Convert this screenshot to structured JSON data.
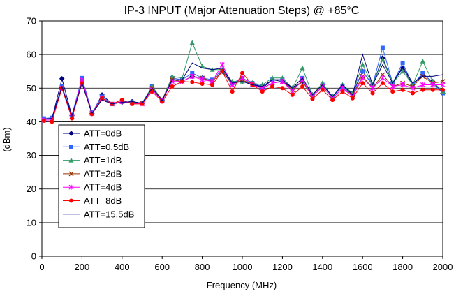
{
  "chart_data": {
    "type": "line",
    "title": "IP-3 INPUT (Major Attenuation Steps) @ +85°C",
    "xlabel": "Frequency (MHz)",
    "ylabel": "(dBm)",
    "xlim": [
      0,
      2000
    ],
    "ylim": [
      0,
      70
    ],
    "xticks": [
      "0",
      "200",
      "400",
      "600",
      "800",
      "1000",
      "1200",
      "1400",
      "1600",
      "1800",
      "2000"
    ],
    "yticks": [
      "0",
      "10",
      "20",
      "30",
      "40",
      "50",
      "60",
      "70"
    ],
    "grid": "horizontal",
    "legend_position": "left",
    "x": [
      10,
      50,
      100,
      150,
      200,
      250,
      300,
      350,
      400,
      450,
      500,
      550,
      600,
      650,
      700,
      750,
      800,
      850,
      900,
      950,
      1000,
      1050,
      1100,
      1150,
      1200,
      1250,
      1300,
      1350,
      1400,
      1450,
      1500,
      1550,
      1600,
      1650,
      1700,
      1750,
      1800,
      1850,
      1900,
      1950,
      2000
    ],
    "series": [
      {
        "name": "ATT=0dB",
        "color": "#000080",
        "marker": "diamond",
        "values": [
          40.8,
          40.8,
          52.8,
          41.8,
          52.5,
          42.5,
          48.0,
          45.3,
          45.8,
          46.0,
          45.5,
          50.0,
          46.5,
          52.5,
          52.0,
          53.5,
          53.0,
          52.0,
          55.0,
          51.5,
          52.0,
          51.5,
          50.0,
          52.5,
          52.0,
          50.0,
          52.0,
          48.0,
          51.0,
          47.5,
          50.5,
          48.5,
          55.0,
          51.0,
          59.0,
          51.5,
          56.0,
          51.0,
          54.0,
          52.0,
          48.5
        ]
      },
      {
        "name": "ATT=0.5dB",
        "color": "#3366ff",
        "marker": "square",
        "values": [
          41.0,
          41.2,
          50.5,
          42.0,
          53.0,
          42.8,
          47.5,
          45.3,
          46.0,
          45.8,
          45.5,
          50.5,
          46.5,
          53.0,
          52.5,
          54.5,
          53.0,
          52.5,
          55.5,
          51.5,
          53.0,
          51.5,
          50.5,
          52.5,
          52.5,
          50.0,
          53.0,
          48.0,
          51.0,
          47.5,
          50.5,
          48.0,
          55.0,
          51.0,
          62.0,
          51.5,
          57.5,
          51.0,
          54.5,
          51.5,
          48.5
        ]
      },
      {
        "name": "ATT=1dB",
        "color": "#339966",
        "marker": "triangle",
        "values": [
          40.5,
          40.5,
          50.0,
          41.5,
          52.0,
          42.5,
          47.0,
          45.3,
          46.0,
          45.8,
          45.5,
          50.5,
          46.5,
          53.5,
          53.0,
          63.5,
          56.5,
          55.5,
          55.5,
          52.0,
          52.0,
          51.5,
          51.0,
          53.0,
          53.0,
          50.0,
          56.0,
          48.0,
          51.5,
          47.5,
          51.0,
          48.5,
          57.0,
          51.0,
          58.5,
          51.5,
          55.0,
          51.0,
          58.0,
          52.0,
          49.0
        ]
      },
      {
        "name": "ATT=2dB",
        "color": "#993300",
        "marker": "x",
        "values": [
          40.5,
          40.5,
          50.0,
          41.5,
          52.0,
          42.5,
          47.0,
          45.3,
          46.0,
          45.5,
          45.5,
          50.0,
          46.5,
          52.5,
          52.0,
          53.5,
          53.0,
          52.0,
          55.0,
          51.0,
          52.5,
          51.0,
          50.0,
          51.5,
          52.0,
          49.5,
          52.0,
          47.5,
          50.5,
          47.0,
          50.0,
          48.0,
          53.5,
          50.0,
          54.0,
          50.5,
          51.5,
          50.5,
          53.5,
          51.5,
          52.0
        ]
      },
      {
        "name": "ATT=4dB",
        "color": "#ff00ff",
        "marker": "star",
        "values": [
          40.5,
          40.5,
          50.0,
          41.5,
          52.5,
          42.5,
          47.0,
          45.3,
          46.0,
          45.5,
          45.3,
          49.5,
          46.3,
          52.0,
          52.0,
          53.5,
          52.5,
          52.0,
          57.0,
          51.0,
          53.0,
          51.0,
          50.0,
          51.5,
          52.0,
          49.0,
          52.5,
          47.5,
          50.5,
          47.0,
          50.0,
          47.5,
          53.0,
          50.0,
          53.0,
          50.5,
          51.0,
          50.0,
          51.0,
          51.0,
          51.0
        ]
      },
      {
        "name": "ATT=8dB",
        "color": "#ff0000",
        "marker": "circle",
        "values": [
          40.3,
          40.0,
          50.0,
          41.0,
          51.5,
          42.3,
          47.0,
          45.3,
          46.5,
          45.3,
          45.3,
          49.0,
          46.0,
          50.5,
          52.0,
          51.8,
          51.3,
          51.0,
          55.0,
          49.0,
          54.5,
          51.0,
          49.0,
          50.5,
          50.0,
          48.0,
          50.5,
          46.8,
          49.5,
          46.5,
          49.0,
          47.0,
          51.5,
          48.5,
          51.5,
          49.0,
          49.5,
          48.5,
          49.5,
          49.5,
          49.5
        ]
      },
      {
        "name": "ATT=15.5dB",
        "color": "#000080",
        "marker": "none",
        "values": [
          40.8,
          41.0,
          50.5,
          41.8,
          51.5,
          42.5,
          46.5,
          45.3,
          45.8,
          46.0,
          45.5,
          50.0,
          46.3,
          52.5,
          52.5,
          57.5,
          56.0,
          55.5,
          56.0,
          51.5,
          52.0,
          51.0,
          50.5,
          52.5,
          52.5,
          50.0,
          53.0,
          48.0,
          51.0,
          47.5,
          51.0,
          48.0,
          60.0,
          51.0,
          57.0,
          51.5,
          56.5,
          51.5,
          53.5,
          53.5,
          54.0
        ]
      }
    ]
  }
}
